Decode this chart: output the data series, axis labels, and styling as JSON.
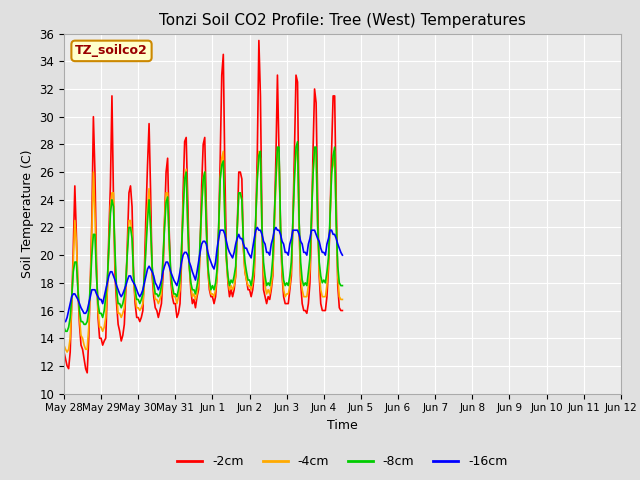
{
  "title": "Tonzi Soil CO2 Profile: Tree (West) Temperatures",
  "xlabel": "Time",
  "ylabel": "Soil Temperature (C)",
  "ylim": [
    10,
    36
  ],
  "yticks": [
    10,
    12,
    14,
    16,
    18,
    20,
    22,
    24,
    26,
    28,
    30,
    32,
    34,
    36
  ],
  "bg_color": "#e0e0e0",
  "plot_bg": "#ebebeb",
  "legend_label": "TZ_soilco2",
  "series_labels": [
    "-2cm",
    "-4cm",
    "-8cm",
    "-16cm"
  ],
  "series_colors": [
    "#ff0000",
    "#ffaa00",
    "#00cc00",
    "#0000ff"
  ],
  "line_width": 1.2,
  "annotation_bg": "#ffffcc",
  "annotation_border": "#cc8800",
  "x_tick_labels": [
    "May 28",
    "May 29",
    "May 30",
    "May 31",
    "Jun 1",
    "Jun 2",
    "Jun 3",
    "Jun 4",
    "Jun 5",
    "Jun 6",
    "Jun 7",
    "Jun 8",
    "Jun 9",
    "Jun 10",
    "Jun 11",
    "Jun 12"
  ],
  "x_tick_positions": [
    0,
    24,
    48,
    72,
    96,
    120,
    144,
    168,
    192,
    216,
    240,
    264,
    288,
    312,
    336,
    360
  ],
  "data_2cm": [
    13.0,
    12.5,
    12.0,
    11.8,
    13.0,
    16.5,
    20.5,
    25.0,
    21.5,
    17.5,
    15.0,
    13.5,
    13.2,
    12.5,
    11.8,
    11.5,
    14.0,
    18.0,
    22.5,
    30.0,
    26.0,
    19.5,
    15.5,
    14.0,
    14.0,
    13.5,
    13.8,
    14.0,
    17.5,
    21.5,
    25.0,
    31.5,
    24.0,
    18.5,
    16.5,
    15.0,
    14.5,
    13.8,
    14.2,
    15.0,
    17.5,
    21.0,
    24.5,
    25.0,
    23.5,
    18.5,
    16.5,
    15.5,
    15.5,
    15.2,
    15.5,
    16.0,
    19.0,
    23.0,
    26.5,
    29.5,
    24.5,
    18.5,
    17.0,
    16.2,
    16.0,
    15.5,
    16.0,
    16.5,
    18.5,
    22.5,
    26.0,
    27.0,
    21.8,
    18.2,
    17.0,
    16.5,
    16.5,
    15.5,
    15.8,
    16.5,
    19.5,
    24.5,
    28.2,
    28.5,
    24.0,
    19.5,
    17.5,
    16.5,
    16.8,
    16.2,
    17.0,
    17.5,
    20.5,
    25.0,
    28.0,
    28.5,
    23.5,
    19.0,
    17.5,
    17.0,
    17.0,
    16.5,
    17.0,
    18.5,
    22.0,
    27.0,
    33.0,
    34.5,
    26.0,
    20.0,
    18.0,
    17.0,
    17.5,
    17.0,
    17.5,
    18.5,
    22.0,
    26.0,
    26.0,
    25.5,
    20.5,
    18.8,
    18.2,
    17.5,
    17.5,
    17.0,
    17.5,
    18.5,
    22.5,
    27.5,
    35.5,
    31.5,
    22.5,
    17.5,
    17.0,
    16.5,
    17.0,
    16.8,
    17.5,
    18.5,
    22.5,
    27.0,
    33.0,
    27.5,
    22.0,
    18.5,
    17.0,
    16.5,
    16.5,
    16.5,
    17.5,
    18.5,
    22.5,
    27.5,
    33.0,
    32.5,
    22.5,
    18.0,
    16.5,
    16.0,
    16.0,
    15.8,
    16.5,
    18.0,
    22.0,
    27.5,
    32.0,
    31.0,
    24.0,
    18.5,
    16.5,
    16.0,
    16.0,
    16.0,
    17.0,
    19.0,
    22.5,
    27.5,
    31.5,
    31.5,
    24.0,
    17.8,
    16.2,
    16.0,
    16.0
  ],
  "data_4cm": [
    13.5,
    13.2,
    13.0,
    13.2,
    14.0,
    16.5,
    19.5,
    22.5,
    21.0,
    17.8,
    15.5,
    14.2,
    14.0,
    13.5,
    13.2,
    13.2,
    14.8,
    17.8,
    21.5,
    26.0,
    23.0,
    18.8,
    16.0,
    14.8,
    14.8,
    14.5,
    14.8,
    15.5,
    17.5,
    20.5,
    23.5,
    24.5,
    24.5,
    19.5,
    17.2,
    15.8,
    15.8,
    15.5,
    15.8,
    16.2,
    17.8,
    20.5,
    22.5,
    22.5,
    21.5,
    18.2,
    17.0,
    16.2,
    16.2,
    16.0,
    16.2,
    16.5,
    18.0,
    21.0,
    23.5,
    24.8,
    22.0,
    18.8,
    17.5,
    16.8,
    16.8,
    16.5,
    16.8,
    17.2,
    19.5,
    22.5,
    24.5,
    24.5,
    20.5,
    18.5,
    17.5,
    17.0,
    17.0,
    16.5,
    17.0,
    17.5,
    20.5,
    23.5,
    25.5,
    26.2,
    22.0,
    19.0,
    17.8,
    17.0,
    17.2,
    16.8,
    17.2,
    18.0,
    20.5,
    23.5,
    25.5,
    26.0,
    21.8,
    19.0,
    17.8,
    17.2,
    17.2,
    17.0,
    17.5,
    18.5,
    21.5,
    25.5,
    27.0,
    27.5,
    22.5,
    19.5,
    18.2,
    17.5,
    17.8,
    17.5,
    17.8,
    18.5,
    21.8,
    24.5,
    24.5,
    24.0,
    20.5,
    18.8,
    18.2,
    17.8,
    17.8,
    17.5,
    18.0,
    19.0,
    22.5,
    25.8,
    27.5,
    27.0,
    21.5,
    18.8,
    17.8,
    17.2,
    17.5,
    17.2,
    17.8,
    18.8,
    22.0,
    25.2,
    27.5,
    27.2,
    21.5,
    18.8,
    17.5,
    17.0,
    17.2,
    17.2,
    17.8,
    19.0,
    22.2,
    25.8,
    27.5,
    27.5,
    21.5,
    18.5,
    17.5,
    17.0,
    17.0,
    17.0,
    17.8,
    19.0,
    22.5,
    26.0,
    27.5,
    27.5,
    22.0,
    18.8,
    17.5,
    17.0,
    17.0,
    17.0,
    17.8,
    19.5,
    22.5,
    26.0,
    26.5,
    27.5,
    22.5,
    18.5,
    17.0,
    16.8,
    16.8
  ],
  "data_8cm": [
    14.8,
    14.5,
    14.5,
    14.8,
    15.5,
    17.0,
    18.8,
    19.5,
    19.5,
    17.5,
    16.0,
    15.2,
    15.2,
    15.0,
    15.0,
    15.2,
    16.0,
    17.8,
    20.0,
    21.5,
    21.5,
    18.5,
    16.5,
    15.8,
    15.8,
    15.5,
    16.0,
    17.0,
    18.2,
    20.5,
    23.0,
    24.0,
    23.5,
    20.2,
    17.5,
    16.5,
    16.5,
    16.2,
    16.5,
    17.0,
    18.2,
    20.2,
    22.0,
    22.0,
    21.2,
    18.5,
    17.5,
    16.8,
    16.8,
    16.5,
    16.8,
    17.2,
    18.5,
    20.5,
    22.5,
    24.0,
    22.0,
    19.2,
    18.0,
    17.2,
    17.2,
    17.0,
    17.2,
    17.8,
    19.8,
    22.0,
    23.8,
    24.2,
    21.2,
    18.8,
    17.8,
    17.2,
    17.2,
    17.0,
    17.5,
    18.2,
    20.5,
    23.0,
    25.5,
    26.0,
    22.2,
    19.2,
    18.0,
    17.5,
    17.5,
    17.2,
    17.8,
    18.5,
    21.0,
    23.5,
    25.5,
    26.0,
    22.0,
    19.2,
    18.2,
    17.5,
    17.8,
    17.5,
    18.0,
    19.0,
    22.0,
    25.5,
    26.5,
    26.8,
    22.5,
    19.8,
    18.5,
    17.8,
    18.2,
    18.0,
    18.5,
    19.2,
    22.0,
    24.5,
    24.5,
    24.0,
    21.0,
    19.5,
    18.8,
    18.2,
    18.2,
    17.8,
    18.5,
    19.8,
    22.8,
    25.5,
    27.2,
    27.5,
    22.0,
    19.5,
    18.5,
    17.8,
    18.0,
    17.8,
    18.5,
    19.8,
    22.8,
    25.5,
    27.8,
    27.8,
    22.0,
    19.5,
    18.2,
    17.8,
    18.0,
    17.8,
    18.5,
    19.5,
    22.5,
    25.5,
    27.8,
    28.2,
    22.5,
    19.5,
    18.2,
    17.8,
    18.0,
    17.8,
    18.8,
    19.8,
    22.8,
    25.8,
    27.8,
    27.8,
    22.2,
    19.5,
    18.5,
    18.0,
    18.2,
    18.0,
    18.8,
    19.8,
    22.8,
    25.8,
    27.2,
    27.8,
    22.2,
    19.2,
    18.0,
    17.8,
    17.8
  ],
  "data_16cm": [
    15.2,
    15.2,
    15.5,
    16.0,
    16.5,
    17.0,
    17.2,
    17.2,
    17.0,
    16.8,
    16.5,
    16.2,
    16.0,
    15.8,
    15.8,
    16.0,
    16.5,
    17.0,
    17.5,
    17.5,
    17.5,
    17.2,
    17.0,
    16.8,
    16.8,
    16.5,
    17.0,
    17.5,
    18.0,
    18.5,
    18.8,
    18.8,
    18.5,
    18.2,
    17.8,
    17.5,
    17.2,
    17.0,
    17.2,
    17.5,
    17.8,
    18.2,
    18.5,
    18.5,
    18.2,
    18.0,
    17.8,
    17.5,
    17.2,
    17.0,
    17.2,
    17.5,
    18.0,
    18.5,
    19.0,
    19.2,
    19.0,
    18.8,
    18.5,
    18.0,
    17.8,
    17.5,
    17.8,
    18.2,
    18.8,
    19.2,
    19.5,
    19.5,
    19.2,
    18.8,
    18.5,
    18.2,
    18.0,
    17.8,
    18.2,
    18.8,
    19.5,
    20.0,
    20.2,
    20.2,
    20.0,
    19.5,
    19.2,
    18.8,
    18.5,
    18.2,
    18.8,
    19.5,
    20.2,
    20.8,
    21.0,
    21.0,
    20.8,
    20.2,
    19.8,
    19.5,
    19.2,
    19.0,
    19.5,
    20.5,
    21.2,
    21.8,
    21.8,
    21.8,
    21.5,
    21.0,
    20.5,
    20.2,
    20.0,
    19.8,
    20.2,
    20.8,
    21.2,
    21.5,
    21.2,
    21.2,
    20.8,
    20.5,
    20.5,
    20.2,
    20.0,
    19.8,
    20.5,
    21.2,
    21.8,
    22.0,
    21.8,
    21.8,
    21.5,
    21.0,
    20.8,
    20.2,
    20.2,
    20.0,
    20.8,
    21.2,
    21.8,
    22.0,
    21.8,
    21.8,
    21.5,
    21.0,
    20.8,
    20.2,
    20.2,
    20.0,
    20.8,
    21.2,
    21.8,
    21.8,
    21.8,
    21.8,
    21.5,
    21.0,
    20.8,
    20.2,
    20.2,
    20.0,
    20.8,
    21.2,
    21.8,
    21.8,
    21.8,
    21.5,
    21.2,
    21.0,
    20.5,
    20.2,
    20.2,
    20.0,
    20.8,
    21.2,
    21.8,
    21.8,
    21.5,
    21.5,
    21.2,
    20.8,
    20.5,
    20.2,
    20.0
  ]
}
